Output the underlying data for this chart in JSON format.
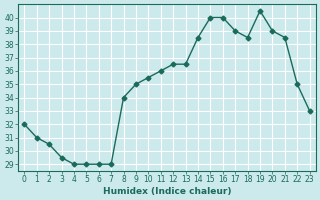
{
  "x": [
    0,
    1,
    2,
    3,
    4,
    5,
    6,
    7,
    8,
    9,
    10,
    11,
    12,
    13,
    14,
    15,
    16,
    17,
    18,
    19,
    20,
    21,
    22,
    23
  ],
  "y": [
    32,
    31,
    30.5,
    29.5,
    29,
    29,
    29,
    29,
    34,
    35,
    35.5,
    36,
    36.5,
    36.5,
    38.5,
    40,
    40,
    39,
    38.5,
    40.5,
    39,
    38.5,
    35,
    33
  ],
  "xlabel": "Humidex (Indice chaleur)",
  "ylabel": "",
  "ylim_bottom": 28.5,
  "ylim_top": 41,
  "xlim": [
    -0.5,
    23.5
  ],
  "yticks": [
    29,
    30,
    31,
    32,
    33,
    34,
    35,
    36,
    37,
    38,
    39,
    40
  ],
  "xticks": [
    0,
    1,
    2,
    3,
    4,
    5,
    6,
    7,
    8,
    9,
    10,
    11,
    12,
    13,
    14,
    15,
    16,
    17,
    18,
    19,
    20,
    21,
    22,
    23
  ],
  "line_color": "#1a6b5a",
  "marker": "D",
  "marker_size": 2.5,
  "bg_color": "#cce9ec",
  "grid_color": "#ffffff",
  "tick_color": "#1a6b5a",
  "label_color": "#1a6b5a"
}
